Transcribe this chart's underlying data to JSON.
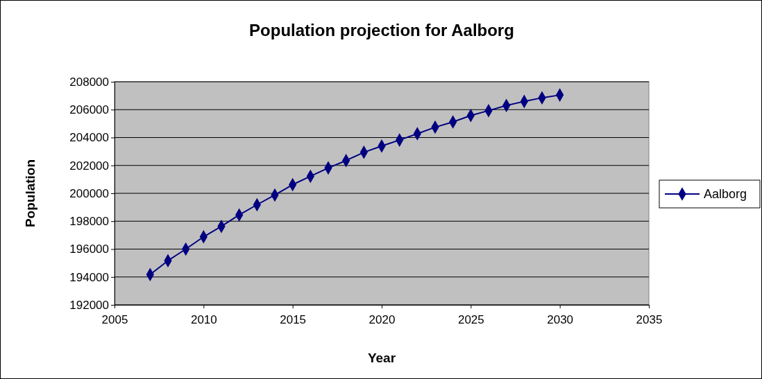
{
  "chart_data": {
    "type": "line",
    "title": "Population projection for Aalborg",
    "xlabel": "Year",
    "ylabel": "Population",
    "x": [
      2007,
      2008,
      2009,
      2010,
      2011,
      2012,
      2013,
      2014,
      2015,
      2016,
      2017,
      2018,
      2019,
      2020,
      2021,
      2022,
      2023,
      2024,
      2025,
      2026,
      2027,
      2028,
      2029,
      2030
    ],
    "series": [
      {
        "name": "Aalborg",
        "color": "#000080",
        "values": [
          194170,
          195170,
          196000,
          196880,
          197630,
          198450,
          199180,
          199880,
          200620,
          201220,
          201820,
          202350,
          202940,
          203390,
          203820,
          204270,
          204740,
          205120,
          205580,
          205930,
          206300,
          206590,
          206850,
          207050
        ]
      }
    ],
    "xlim": [
      2005,
      2035
    ],
    "xticks": [
      2005,
      2010,
      2015,
      2020,
      2025,
      2030,
      2035
    ],
    "ylim": [
      192000,
      208000
    ],
    "yticks": [
      192000,
      194000,
      196000,
      198000,
      200000,
      202000,
      204000,
      206000,
      208000
    ],
    "grid": "y",
    "legend": "right",
    "marker": "diamond",
    "line_style": "solid"
  }
}
